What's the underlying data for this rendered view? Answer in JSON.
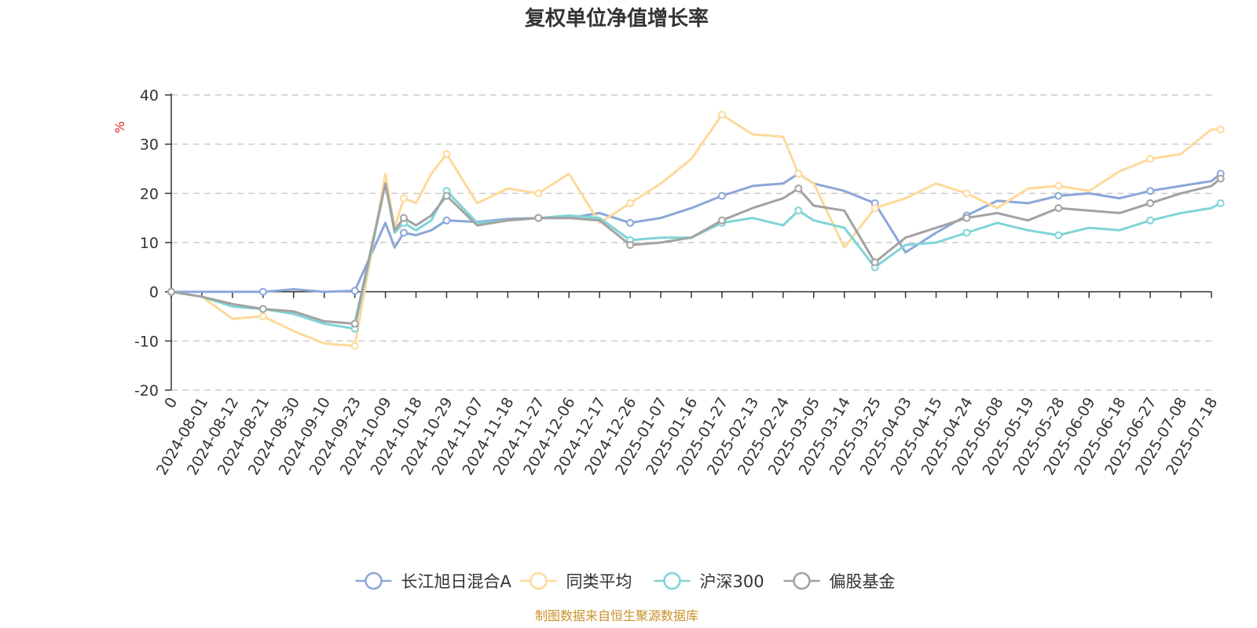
{
  "chart_data": {
    "type": "line",
    "title": "复权单位净值增长率",
    "ylabel": "%",
    "ylim": [
      -20,
      40
    ],
    "yticks": [
      40,
      30,
      20,
      10,
      0,
      -10,
      -20
    ],
    "grid": true,
    "legend_position": "bottom-center",
    "x_tick_labels": [
      "0",
      "2024-08-01",
      "2024-08-12",
      "2024-08-21",
      "2024-08-30",
      "2024-09-10",
      "2024-09-23",
      "2024-10-09",
      "2024-10-18",
      "2024-10-29",
      "2024-11-07",
      "2024-11-18",
      "2024-11-27",
      "2024-12-06",
      "2024-12-17",
      "2024-12-26",
      "2025-01-07",
      "2025-01-16",
      "2025-01-27",
      "2025-02-13",
      "2025-02-24",
      "2025-03-05",
      "2025-03-14",
      "2025-03-25",
      "2025-04-03",
      "2025-04-15",
      "2025-04-24",
      "2025-05-08",
      "2025-05-19",
      "2025-05-28",
      "2025-06-09",
      "2025-06-18",
      "2025-06-27",
      "2025-07-08",
      "2025-07-18"
    ],
    "x_positions": [
      0,
      1,
      2,
      3,
      4,
      5,
      6,
      7,
      7.3,
      7.6,
      8,
      8.5,
      9,
      10,
      11,
      12,
      13,
      14,
      15,
      16,
      17,
      18,
      19,
      20,
      20.5,
      21,
      22,
      23,
      24,
      25,
      26,
      27,
      28,
      29,
      30,
      31,
      32,
      33,
      34,
      34.3
    ],
    "series": [
      {
        "name": "长江旭日混合A",
        "color": "#8ba7d8",
        "values": [
          0,
          0,
          0,
          0,
          0.5,
          0,
          0.2,
          14,
          9,
          12,
          11.5,
          12.5,
          14.5,
          14.2,
          14.8,
          15,
          15,
          16,
          14,
          15,
          17,
          19.5,
          21.5,
          22,
          24,
          22,
          20.5,
          18,
          8,
          12,
          15.5,
          18.5,
          18,
          19.5,
          20,
          19,
          20.5,
          21.5,
          22.5,
          24
        ]
      },
      {
        "name": "同类平均",
        "color": "#fdd99a",
        "values": [
          0,
          -1,
          -5.5,
          -5,
          -8,
          -10.5,
          -11,
          24,
          13,
          19,
          18,
          24,
          28,
          18,
          21,
          20,
          24,
          14,
          18,
          22,
          27,
          36,
          32,
          31.5,
          24,
          22,
          9,
          17,
          19,
          22,
          20,
          17,
          21,
          21.5,
          20.5,
          24.5,
          27,
          28,
          33,
          33
        ]
      },
      {
        "name": "沪深300",
        "color": "#7fd4d6",
        "values": [
          0,
          -1,
          -3,
          -3.5,
          -4.5,
          -6.5,
          -7.5,
          22,
          12,
          14,
          12.5,
          14.5,
          20.5,
          14,
          14.5,
          15,
          15.5,
          15,
          10.5,
          11,
          11,
          14,
          15,
          13.5,
          16.5,
          14.5,
          13,
          5,
          9.5,
          10,
          12,
          14,
          12.5,
          11.5,
          13,
          12.5,
          14.5,
          16,
          17,
          18
        ]
      },
      {
        "name": "偏股基金",
        "color": "#a2a2a2",
        "values": [
          0,
          -1,
          -2.5,
          -3.5,
          -4,
          -6,
          -6.5,
          22,
          12.5,
          15,
          13.5,
          15.5,
          19.5,
          13.5,
          14.5,
          15,
          15,
          14.5,
          9.5,
          10,
          11,
          14.5,
          17,
          19,
          21,
          17.5,
          16.5,
          6,
          11,
          13,
          15,
          16,
          14.5,
          17,
          16.5,
          16,
          18,
          20,
          21.5,
          23
        ]
      }
    ],
    "legend": [
      "长江旭日混合A",
      "同类平均",
      "沪深300",
      "偏股基金"
    ]
  },
  "footer": {
    "source": "制图数据来自恒生聚源数据库"
  }
}
